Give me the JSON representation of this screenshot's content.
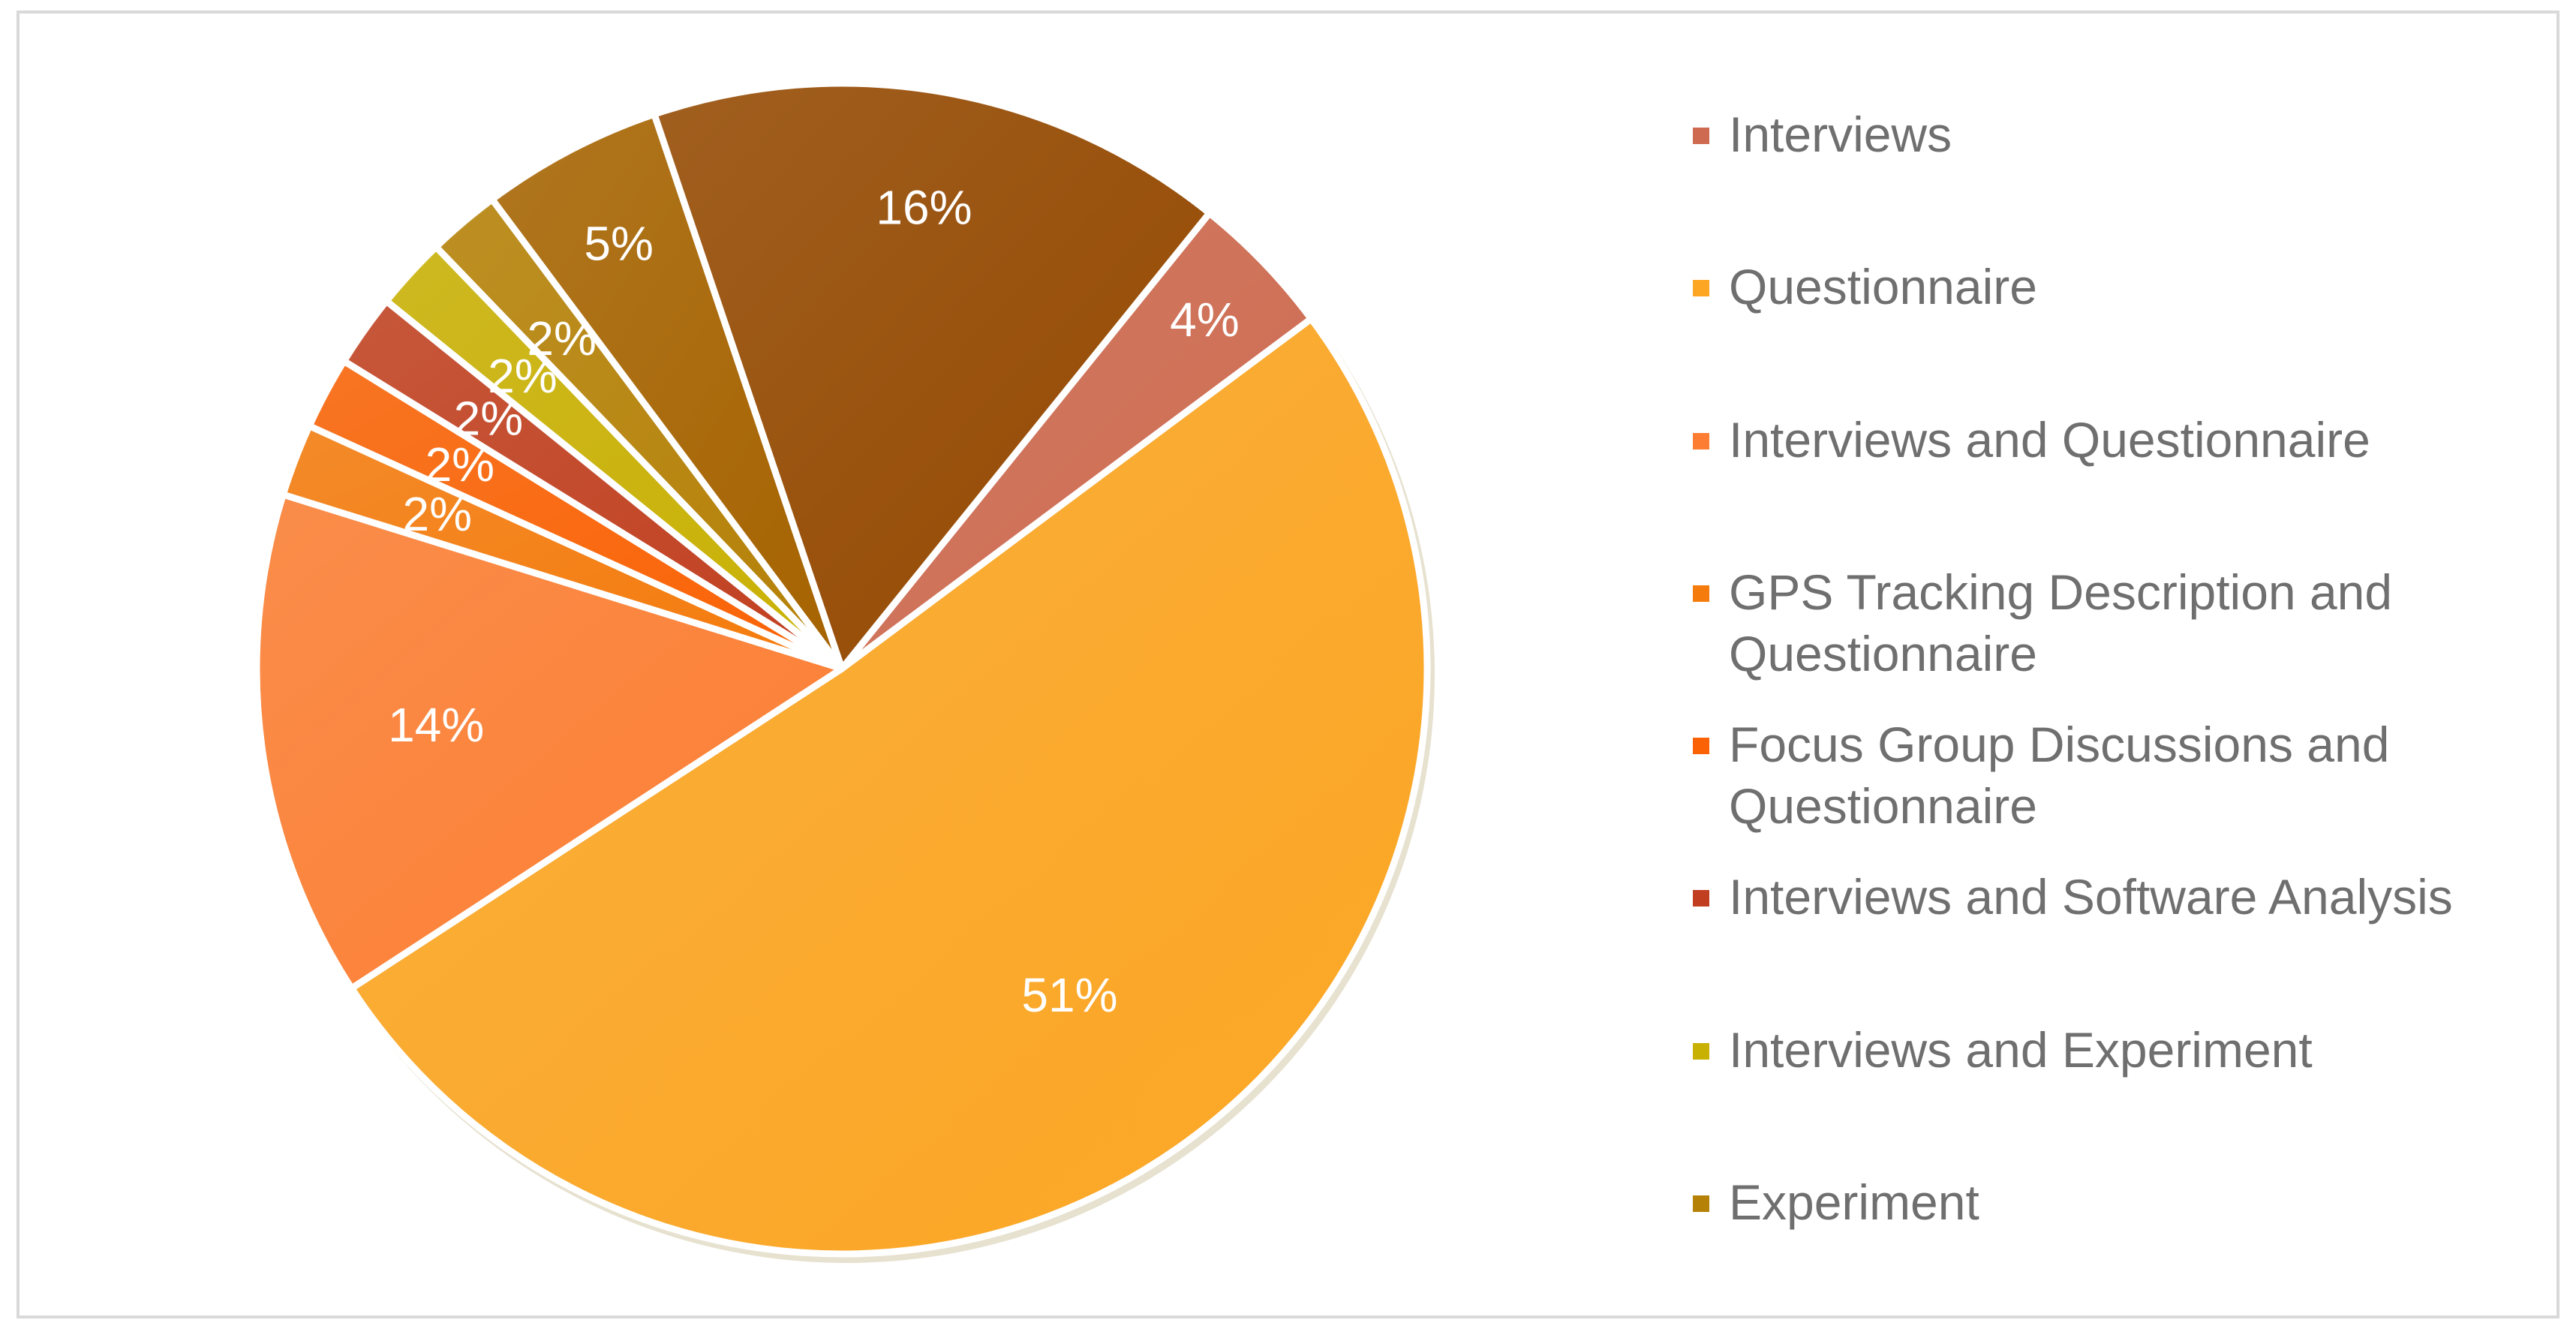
{
  "chart_data": {
    "type": "pie",
    "title": "",
    "legend_position": "right",
    "slices": [
      {
        "label": "Interviews",
        "legend_text": " Interviews",
        "value": 4,
        "display": "4%",
        "color": "#cd6a50"
      },
      {
        "label": "Questionnaire",
        "legend_text": "Questionnaire",
        "value": 51,
        "display": "51%",
        "color": "#fca623"
      },
      {
        "label": "Interviews and Questionnaire",
        "legend_text": "Interviews and Questionnaire",
        "value": 14,
        "display": "14%",
        "color": "#fd7e33"
      },
      {
        "label": "GPS Tracking Description and Questionnaire",
        "legend_text": "GPS Tracking Description and Questionnaire",
        "value": 2,
        "display": "2%",
        "color": "#f57b0c"
      },
      {
        "label": "Focus Group Discussions and Questionnaire",
        "legend_text": "Focus Group Discussions and Questionnaire",
        "value": 2,
        "display": "2%",
        "color": "#fb6205"
      },
      {
        "label": "Interviews and Software Analysis",
        "legend_text": "Interviews and Software Analysis",
        "value": 2,
        "display": "2%",
        "color": "#c13f20"
      },
      {
        "label": "Interviews and Experiment",
        "legend_text": "Interviews and Experiment",
        "value": 2,
        "display": "2%",
        "color": "#c9b103"
      },
      {
        "label": "Experiment",
        "legend_text": "Experiment",
        "value": 2,
        "display": "2%",
        "color": "#b58106"
      },
      {
        "label": "",
        "legend_text": "",
        "value": 5,
        "display": "5%",
        "color": "#a66300"
      },
      {
        "label": "",
        "legend_text": "",
        "value": 16,
        "display": "16%",
        "color": "#944800"
      }
    ]
  }
}
